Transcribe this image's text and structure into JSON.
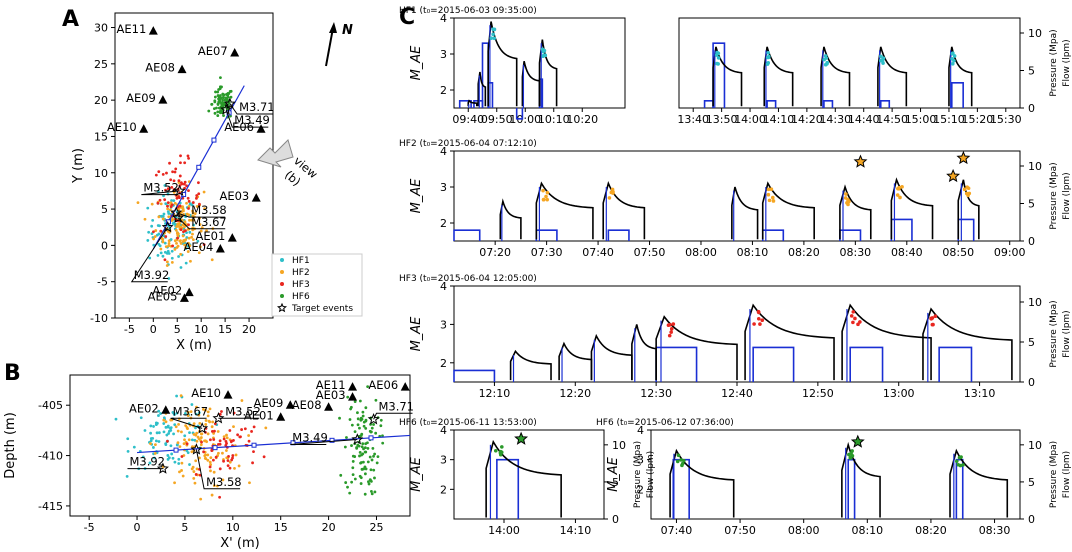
{
  "colors": {
    "HF1": "#2ebfc9",
    "HF2": "#f5a623",
    "HF3": "#e8261f",
    "HF6": "#2a9a2a",
    "flow": "#1a2fd4",
    "line": "#1a2fd4",
    "axis": "#000000"
  },
  "panel_letters": {
    "a": "A",
    "b": "B",
    "c": "C"
  },
  "north_label": "N",
  "view_label": [
    "view",
    "(b)"
  ],
  "chart_data": [
    {
      "id": "A",
      "type": "scatter",
      "xlabel": "X (m)",
      "ylabel": "Y (m)",
      "xlim": [
        -8,
        25
      ],
      "ylim": [
        -10,
        32
      ],
      "xticks": [
        -5,
        0,
        5,
        10,
        15,
        20
      ],
      "yticks": [
        -10,
        -5,
        0,
        5,
        10,
        15,
        20,
        25,
        30
      ],
      "stations": [
        {
          "name": "AE11",
          "x": 0,
          "y": 29.5
        },
        {
          "name": "AE07",
          "x": 17,
          "y": 26.5
        },
        {
          "name": "AE08",
          "x": 6,
          "y": 24.2
        },
        {
          "name": "AE09",
          "x": 2,
          "y": 20
        },
        {
          "name": "AE10",
          "x": -2,
          "y": 16
        },
        {
          "name": "AE06",
          "x": 22.5,
          "y": 16
        },
        {
          "name": "AE03",
          "x": 21.5,
          "y": 6.5
        },
        {
          "name": "AE04",
          "x": 14,
          "y": -0.5
        },
        {
          "name": "AE01",
          "x": 16.5,
          "y": 1
        },
        {
          "name": "AE05",
          "x": 6.5,
          "y": -7.3
        },
        {
          "name": "AE02",
          "x": 7.5,
          "y": -6.5
        }
      ],
      "clusters": [
        {
          "name": "HF1",
          "cx": 4,
          "cy": 2,
          "sx": 2.5,
          "sy": 2.5,
          "n": 110
        },
        {
          "name": "HF2",
          "cx": 5.5,
          "cy": 3,
          "sx": 2.5,
          "sy": 2.5,
          "n": 150
        },
        {
          "name": "HF3",
          "cx": 5,
          "cy": 6.5,
          "sx": 2.5,
          "sy": 2.5,
          "n": 70
        },
        {
          "name": "HF6",
          "cx": 14.5,
          "cy": 19.5,
          "sx": 1.1,
          "sy": 1.1,
          "n": 90
        }
      ],
      "events": [
        {
          "label": "M3.71",
          "x": 16,
          "y": 19.5,
          "lx": 17.5,
          "ly": 18.5
        },
        {
          "label": "M3.49",
          "x": 15.2,
          "y": 18.7,
          "lx": 16.5,
          "ly": 16.7
        },
        {
          "label": "M3.52",
          "x": 5.5,
          "y": 7.5,
          "lx": -2.5,
          "ly": 7.4
        },
        {
          "label": "M3.58",
          "x": 4.8,
          "y": 4.5,
          "lx": 7.5,
          "ly": 4.3
        },
        {
          "label": "M3.67",
          "x": 5.2,
          "y": 3.8,
          "lx": 7.5,
          "ly": 2.7
        },
        {
          "label": "M3.92",
          "x": 3,
          "y": 2.5,
          "lx": -4.5,
          "ly": -4.6
        }
      ],
      "line": {
        "x1": 0,
        "y1": -0.5,
        "x2": 19,
        "y2": 22
      },
      "legend": [
        {
          "name": "HF1",
          "label": "HF1"
        },
        {
          "name": "HF2",
          "label": "HF2"
        },
        {
          "name": "HF3",
          "label": "HF3"
        },
        {
          "name": "HF6",
          "label": "HF6"
        },
        {
          "name": "star",
          "label": "Target events"
        }
      ]
    },
    {
      "id": "B",
      "type": "scatter",
      "xlabel": "X' (m)",
      "ylabel": "Depth (m)",
      "xlim": [
        -7,
        28.5
      ],
      "ylim": [
        -416,
        -402
      ],
      "xticks": [
        -5,
        0,
        5,
        10,
        15,
        20,
        25
      ],
      "yticks": [
        -405,
        -410,
        -415
      ],
      "stations": [
        {
          "name": "AE02",
          "x": 3,
          "y": -405.5
        },
        {
          "name": "AE10",
          "x": 9.5,
          "y": -404
        },
        {
          "name": "AE09",
          "x": 16,
          "y": -405
        },
        {
          "name": "AE11",
          "x": 22.5,
          "y": -403.2
        },
        {
          "name": "AE03",
          "x": 22.5,
          "y": -404.2
        },
        {
          "name": "AE06",
          "x": 28,
          "y": -403.2
        },
        {
          "name": "AE08",
          "x": 20,
          "y": -405.2
        },
        {
          "name": "AE01",
          "x": 15,
          "y": -406.2
        }
      ],
      "clusters": [
        {
          "name": "HF1",
          "cx": 3.5,
          "cy": -408,
          "sx": 2,
          "sy": 1.6,
          "n": 90
        },
        {
          "name": "HF2",
          "cx": 6.5,
          "cy": -409,
          "sx": 2.2,
          "sy": 2.2,
          "n": 130
        },
        {
          "name": "HF3",
          "cx": 9,
          "cy": -409,
          "sx": 2,
          "sy": 1.8,
          "n": 60
        },
        {
          "name": "HF6",
          "cx": 23.5,
          "cy": -409,
          "sx": 0.9,
          "sy": 2.5,
          "n": 110
        }
      ],
      "events": [
        {
          "label": "M3.67",
          "x": 6.8,
          "y": -407.3,
          "lx": 3.5,
          "ly": -406
        },
        {
          "label": "M3.52",
          "x": 8.5,
          "y": -406.3,
          "lx": 9,
          "ly": -406
        },
        {
          "label": "M3.71",
          "x": 24.7,
          "y": -406.4,
          "lx": 25,
          "ly": -405.5
        },
        {
          "label": "M3.49",
          "x": 23,
          "y": -408.4,
          "lx": 16,
          "ly": -408.6
        },
        {
          "label": "M3.92",
          "x": 2.7,
          "y": -411.3,
          "lx": -1,
          "ly": -411
        },
        {
          "label": "M3.58",
          "x": 6.2,
          "y": -409.4,
          "lx": 7,
          "ly": -413
        }
      ],
      "line": {
        "x1": 0,
        "y1": -409.7,
        "x2": 28.5,
        "y2": -408
      }
    },
    {
      "id": "C",
      "type": "line",
      "ylabel_left": "M_AE",
      "ylabel_right": [
        "Pressure (Mpa)",
        "Flow (lpm)"
      ],
      "panels": [
        {
          "title": "HF1 (t₀=2015-06-03 09:35:00)",
          "color": "HF1",
          "left_ylim": [
            1.5,
            4
          ],
          "left_yticks": [
            2,
            3,
            4
          ],
          "subplots": [
            {
              "xlim": [
                0,
                60
              ],
              "xticks": [
                5,
                15,
                25,
                35,
                45
              ],
              "xticklabels": [
                "09:40",
                "09:50",
                "10:00",
                "10:10",
                "10:20"
              ],
              "pulses": [
                [
                  5,
                  8,
                  0.3,
                  1.7,
                  0
                ],
                [
                  8.5,
                  11,
                  0.6,
                  2.5,
                  0
                ],
                [
                  12,
                  22,
                  1.0,
                  3.9,
                  1
                ],
                [
                  24,
                  30,
                  0.6,
                  2.8,
                  0
                ],
                [
                  30,
                  36,
                  1.0,
                  3.4,
                  1
                ]
              ],
              "flows": [
                [
                  2,
                  6,
                  1.7
                ],
                [
                  7,
                  10,
                  1.7
                ],
                [
                  10,
                  12,
                  3.3
                ],
                [
                  12,
                  13.5,
                  2.2
                ],
                [
                  22,
                  24,
                  1.2
                ],
                [
                  30,
                  31,
                  2.3
                ]
              ]
            },
            {
              "xlim": [
                0,
                120
              ],
              "xticks": [
                5,
                15,
                25,
                35,
                45,
                55,
                65,
                75,
                85,
                95,
                105,
                115
              ],
              "xticklabels": [
                "13:40",
                "13:50",
                "14:00",
                "14:10",
                "14:20",
                "14:30",
                "14:40",
                "14:50",
                "15:00",
                "15:10",
                "15:20",
                "15:30"
              ],
              "pulses": [
                [
                  12,
                  22,
                  1.0,
                  3.2,
                  1
                ],
                [
                  30,
                  40,
                  1.0,
                  3.2,
                  1
                ],
                [
                  50,
                  60,
                  1.0,
                  3.2,
                  1
                ],
                [
                  70,
                  80,
                  1.0,
                  3.2,
                  1
                ],
                [
                  95,
                  103,
                  1.0,
                  3.2,
                  1
                ]
              ],
              "flows": [
                [
                  9,
                  12,
                  1.7
                ],
                [
                  12,
                  16,
                  3.3
                ],
                [
                  31,
                  34,
                  1.7
                ],
                [
                  51,
                  54,
                  1.7
                ],
                [
                  71,
                  74,
                  1.7
                ],
                [
                  96,
                  100,
                  2.2
                ]
              ]
            }
          ]
        },
        {
          "title": "HF2 (t₀=2015-06-04 07:12:10)",
          "color": "HF2",
          "left_ylim": [
            1.5,
            4
          ],
          "left_yticks": [
            2,
            3,
            4
          ],
          "subplots": [
            {
              "xlim": [
                0,
                110
              ],
              "xticks": [
                8,
                18,
                28,
                38,
                48,
                58,
                68,
                78,
                88,
                98,
                108
              ],
              "xticklabels": [
                "07:20",
                "07:30",
                "07:40",
                "07:50",
                "08:00",
                "08:10",
                "08:20",
                "08:30",
                "08:40",
                "08:50",
                "09:00"
              ],
              "pulses": [
                [
                  9,
                  13,
                  0.5,
                  2.6,
                  0
                ],
                [
                  16,
                  27,
                  1.0,
                  3.1,
                  1
                ],
                [
                  29,
                  37,
                  1.0,
                  3.1,
                  1
                ],
                [
                  54,
                  59,
                  0.6,
                  3.0,
                  0
                ],
                [
                  60,
                  70,
                  1.0,
                  3.1,
                  1
                ],
                [
                  75,
                  81,
                  1.0,
                  3.0,
                  1
                ],
                [
                  85,
                  93,
                  1.0,
                  3.2,
                  1
                ],
                [
                  98,
                  102,
                  1.0,
                  3.2,
                  1
                ]
              ],
              "flows": [
                [
                  0,
                  5,
                  1.8
                ],
                [
                  16,
                  20,
                  1.8
                ],
                [
                  30,
                  34,
                  1.8
                ],
                [
                  60,
                  64,
                  1.8
                ],
                [
                  75,
                  79,
                  1.8
                ],
                [
                  85,
                  89,
                  2.1
                ],
                [
                  98,
                  101,
                  2.1
                ]
              ],
              "stars": [
                [
                  79,
                  3.7
                ],
                [
                  97,
                  3.3
                ],
                [
                  99,
                  3.8
                ]
              ]
            }
          ]
        },
        {
          "title": "HF3 (t₀=2015-06-04 12:05:00)",
          "color": "HF3",
          "left_ylim": [
            1.5,
            4
          ],
          "left_yticks": [
            2,
            3,
            4
          ],
          "subplots": [
            {
              "xlim": [
                0,
                70
              ],
              "xticks": [
                5,
                15,
                25,
                35,
                45,
                55,
                65
              ],
              "xticklabels": [
                "12:10",
                "12:20",
                "12:30",
                "12:40",
                "12:50",
                "13:00",
                "13:10"
              ],
              "pulses": [
                [
                  7,
                  12,
                  0.6,
                  2.3,
                  0
                ],
                [
                  13,
                  17,
                  0.6,
                  2.5,
                  0
                ],
                [
                  17,
                  22,
                  0.6,
                  2.7,
                  0
                ],
                [
                  22,
                  25,
                  0.6,
                  3.0,
                  0
                ],
                [
                  25,
                  35,
                  1.0,
                  3.2,
                  1
                ],
                [
                  36,
                  47,
                  1.0,
                  3.5,
                  1
                ],
                [
                  48,
                  59,
                  1.0,
                  3.5,
                  1
                ],
                [
                  58,
                  69,
                  1.0,
                  3.4,
                  1
                ]
              ],
              "flows": [
                [
                  0,
                  5,
                  1.8
                ],
                [
                  25,
                  30,
                  2.4
                ],
                [
                  37,
                  42,
                  2.4
                ],
                [
                  49,
                  53,
                  2.4
                ],
                [
                  60,
                  64,
                  2.4
                ]
              ]
            }
          ]
        },
        {
          "title": "HF6 (t₀=2015-06-11 13:53:00)",
          "color": "HF6",
          "left_ylim": [
            1,
            4
          ],
          "left_yticks": [
            2,
            3,
            4
          ],
          "subplots": [
            {
              "xlim": [
                0,
                21
              ],
              "xticks": [
                7,
                17
              ],
              "xticklabels": [
                "14:00",
                "14:10"
              ],
              "pulses": [
                [
                  4.5,
                  15,
                  1.0,
                  3.6,
                  1
                ]
              ],
              "flows": [
                [
                  6,
                  9,
                  3.0
                ]
              ],
              "stars": [
                [
                  9.4,
                  3.7
                ]
              ]
            }
          ]
        },
        {
          "title": "HF6 (t₀=2015-06-12 07:36:00)",
          "color": "HF6",
          "left_ylim": [
            1,
            4
          ],
          "left_yticks": [
            2,
            3,
            4
          ],
          "subplots": [
            {
              "xlim": [
                0,
                58
              ],
              "xticks": [
                4,
                14,
                24,
                34,
                44,
                54
              ],
              "xticklabels": [
                "07:40",
                "07:50",
                "08:00",
                "08:10",
                "08:20",
                "08:30"
              ],
              "pulses": [
                [
                  3,
                  13,
                  1.0,
                  3.3,
                  1
                ],
                [
                  30,
                  36,
                  1.0,
                  3.5,
                  1
                ],
                [
                  47,
                  56,
                  1.0,
                  3.3,
                  1
                ]
              ],
              "flows": [
                [
                  3.5,
                  6,
                  3.0
                ],
                [
                  31,
                  32,
                  3.0
                ],
                [
                  48,
                  49,
                  3.0
                ]
              ],
              "stars": [
                [
                  32.5,
                  3.6
                ]
              ]
            }
          ]
        }
      ]
    }
  ]
}
